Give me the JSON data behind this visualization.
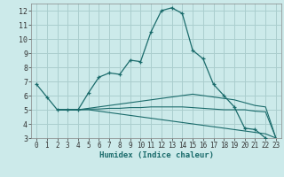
{
  "title": "",
  "xlabel": "Humidex (Indice chaleur)",
  "bg_color": "#cceaea",
  "grid_color": "#aacece",
  "line_color": "#1a6b6b",
  "xlim": [
    -0.5,
    23.5
  ],
  "ylim": [
    3,
    12.5
  ],
  "xticks": [
    0,
    1,
    2,
    3,
    4,
    5,
    6,
    7,
    8,
    9,
    10,
    11,
    12,
    13,
    14,
    15,
    16,
    17,
    18,
    19,
    20,
    21,
    22,
    23
  ],
  "yticks": [
    3,
    4,
    5,
    6,
    7,
    8,
    9,
    10,
    11,
    12
  ],
  "series": [
    {
      "x": [
        0,
        1,
        2,
        3,
        4,
        5,
        6,
        7,
        8,
        9,
        10,
        11,
        12,
        13,
        14,
        15,
        16,
        17,
        18,
        19,
        20,
        21,
        22
      ],
      "y": [
        6.8,
        5.9,
        5.0,
        5.0,
        5.0,
        6.2,
        7.3,
        7.6,
        7.5,
        8.5,
        8.4,
        10.5,
        12.0,
        12.2,
        11.8,
        9.2,
        8.6,
        6.8,
        6.0,
        5.2,
        3.7,
        3.6,
        3.0
      ],
      "has_marker": true
    },
    {
      "x": [
        2,
        3,
        4,
        5,
        6,
        7,
        8,
        9,
        10,
        11,
        12,
        13,
        14,
        15,
        16,
        17,
        18,
        19,
        20,
        21,
        22,
        23
      ],
      "y": [
        5.0,
        5.0,
        5.0,
        5.1,
        5.2,
        5.3,
        5.4,
        5.5,
        5.6,
        5.7,
        5.8,
        5.9,
        6.0,
        6.1,
        6.0,
        5.9,
        5.8,
        5.7,
        5.5,
        5.3,
        5.2,
        3.0
      ],
      "has_marker": false
    },
    {
      "x": [
        2,
        3,
        4,
        5,
        6,
        7,
        8,
        9,
        10,
        11,
        12,
        13,
        14,
        15,
        16,
        17,
        18,
        19,
        20,
        21,
        22,
        23
      ],
      "y": [
        5.0,
        5.0,
        5.0,
        5.0,
        4.9,
        4.8,
        4.7,
        4.6,
        4.5,
        4.4,
        4.3,
        4.2,
        4.1,
        4.0,
        3.9,
        3.8,
        3.7,
        3.6,
        3.5,
        3.4,
        3.3,
        3.0
      ],
      "has_marker": false
    },
    {
      "x": [
        2,
        3,
        4,
        5,
        6,
        7,
        8,
        9,
        10,
        11,
        12,
        13,
        14,
        15,
        16,
        17,
        18,
        19,
        20,
        21,
        22,
        23
      ],
      "y": [
        5.0,
        5.0,
        5.0,
        5.05,
        5.05,
        5.1,
        5.1,
        5.15,
        5.15,
        5.2,
        5.2,
        5.2,
        5.2,
        5.15,
        5.1,
        5.05,
        5.0,
        5.0,
        5.0,
        4.9,
        4.85,
        3.0
      ],
      "has_marker": false
    }
  ]
}
